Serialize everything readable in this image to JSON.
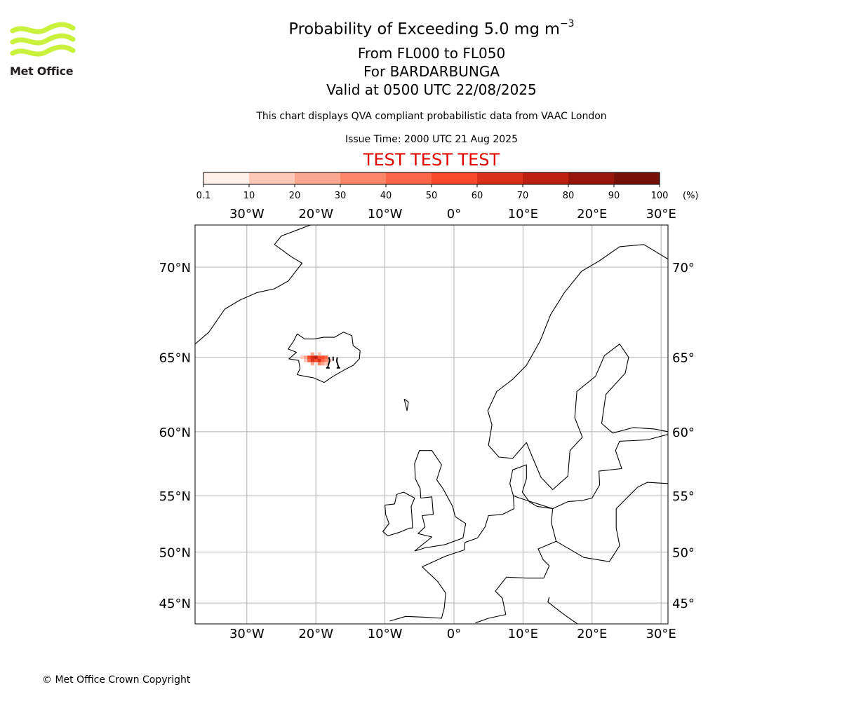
{
  "header": {
    "title_main": "Probability of Exceeding 5.0 mg m",
    "title_exponent": "−3",
    "flight_levels": "From FL000 to FL050",
    "volcano": "For BARDARBUNGA",
    "valid_time": "Valid at 0500 UTC 22/08/2025",
    "note": "This chart displays QVA compliant probabilistic data from VAAC London",
    "issue_time": "Issue Time: 2000 UTC 21 Aug 2025",
    "test_banner": "TEST TEST TEST"
  },
  "logo": {
    "text": "Met Office",
    "colors": {
      "waves": "#c8f23c",
      "text": "#231f20"
    }
  },
  "colorbar": {
    "tick_labels": [
      "0.1",
      "10",
      "20",
      "30",
      "40",
      "50",
      "60",
      "70",
      "80",
      "90",
      "100"
    ],
    "unit_label": "(%)",
    "colors": [
      "#fff0ea",
      "#fdc8b8",
      "#fca890",
      "#fc8668",
      "#fb6646",
      "#f84a2a",
      "#db3018",
      "#be2010",
      "#98150c",
      "#771008"
    ]
  },
  "map": {
    "projection": "geographic",
    "lon_range": [
      -37.5,
      31
    ],
    "lat_range": [
      42.8,
      72
    ],
    "grid": true,
    "lon_labels": [
      {
        "value": -30,
        "text": "30°W"
      },
      {
        "value": -20,
        "text": "20°W"
      },
      {
        "value": -10,
        "text": "10°W"
      },
      {
        "value": 0,
        "text": "0°"
      },
      {
        "value": 10,
        "text": "10°E"
      },
      {
        "value": 20,
        "text": "20°E"
      },
      {
        "value": 30,
        "text": "30°E"
      }
    ],
    "lat_labels": [
      {
        "value": 70,
        "text": "70°N"
      },
      {
        "value": 65,
        "text": "65°N"
      },
      {
        "value": 60,
        "text": "60°N"
      },
      {
        "value": 55,
        "text": "55°N"
      },
      {
        "value": 50,
        "text": "50°N"
      },
      {
        "value": 45,
        "text": "45°N"
      }
    ],
    "volcano_icon": "volcano-icon",
    "volcano_location": {
      "lon": -17.5,
      "lat": 64.6
    },
    "probability_cells": [
      {
        "lon": -21.0,
        "lat": 65.0,
        "p": 55
      },
      {
        "lon": -20.5,
        "lat": 65.0,
        "p": 60
      },
      {
        "lon": -20.0,
        "lat": 65.0,
        "p": 70
      },
      {
        "lon": -19.5,
        "lat": 65.0,
        "p": 55
      },
      {
        "lon": -19.0,
        "lat": 65.0,
        "p": 50
      },
      {
        "lon": -18.5,
        "lat": 65.0,
        "p": 40
      },
      {
        "lon": -21.0,
        "lat": 64.8,
        "p": 45
      },
      {
        "lon": -20.5,
        "lat": 64.8,
        "p": 65
      },
      {
        "lon": -20.0,
        "lat": 64.8,
        "p": 55
      },
      {
        "lon": -19.5,
        "lat": 64.8,
        "p": 60
      },
      {
        "lon": -19.0,
        "lat": 64.8,
        "p": 45
      },
      {
        "lon": -18.5,
        "lat": 64.8,
        "p": 30
      },
      {
        "lon": -21.5,
        "lat": 65.0,
        "p": 25
      },
      {
        "lon": -22.0,
        "lat": 65.0,
        "p": 10
      },
      {
        "lon": -20.5,
        "lat": 65.2,
        "p": 20
      },
      {
        "lon": -19.5,
        "lat": 65.2,
        "p": 15
      },
      {
        "lon": -20.5,
        "lat": 64.6,
        "p": 25
      },
      {
        "lon": -19.5,
        "lat": 64.6,
        "p": 35
      },
      {
        "lon": -19.0,
        "lat": 64.6,
        "p": 20
      },
      {
        "lon": -18.5,
        "lat": 64.6,
        "p": 15
      },
      {
        "lon": -21.5,
        "lat": 64.8,
        "p": 12
      },
      {
        "lon": -18.0,
        "lat": 64.8,
        "p": 10
      }
    ]
  },
  "footer": {
    "copyright": "© Met Office Crown Copyright"
  }
}
